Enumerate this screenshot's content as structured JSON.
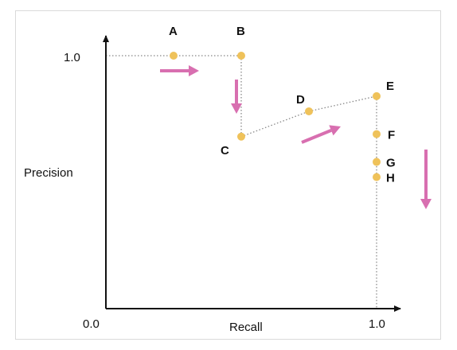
{
  "colors": {
    "point": "#efc25a",
    "arrow": "#d86fb0",
    "axis": "#111111",
    "dotted": "#888888",
    "frame_border": "#d9d9d9"
  },
  "axes": {
    "x_label": "Recall",
    "y_label": "Precision",
    "origin_label": "0.0",
    "x_max_label": "1.0",
    "y_max_label": "1.0"
  },
  "chart_data": {
    "type": "scatter",
    "x_range": [
      0,
      1
    ],
    "y_range": [
      0,
      1
    ],
    "points": [
      {
        "label": "A",
        "x": 0.25,
        "y": 1.0
      },
      {
        "label": "B",
        "x": 0.5,
        "y": 1.0
      },
      {
        "label": "C",
        "x": 0.5,
        "y": 0.68
      },
      {
        "label": "D",
        "x": 0.75,
        "y": 0.78
      },
      {
        "label": "E",
        "x": 1.0,
        "y": 0.84
      },
      {
        "label": "F",
        "x": 1.0,
        "y": 0.69
      },
      {
        "label": "G",
        "x": 1.0,
        "y": 0.58
      },
      {
        "label": "H",
        "x": 1.0,
        "y": 0.52
      }
    ],
    "arrows": [
      {
        "direction": "right"
      },
      {
        "direction": "down"
      },
      {
        "direction": "up-right"
      },
      {
        "direction": "down"
      }
    ]
  }
}
